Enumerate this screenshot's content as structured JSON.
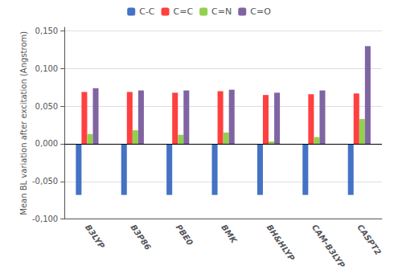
{
  "chart_data": {
    "type": "bar",
    "categories": [
      "B3LYP",
      "B3P86",
      "PBE0",
      "BMK",
      "BH&HLYP",
      "CAM-B3LYP",
      "CASPT2"
    ],
    "series": [
      {
        "name": "C-C",
        "color": "#4472C4",
        "values": [
          -0.068,
          -0.068,
          -0.068,
          -0.068,
          -0.068,
          -0.068,
          -0.068
        ]
      },
      {
        "name": "C=C",
        "color": "#FF4040",
        "values": [
          0.069,
          0.069,
          0.068,
          0.07,
          0.065,
          0.066,
          0.067
        ]
      },
      {
        "name": "C=N",
        "color": "#92D050",
        "values": [
          0.013,
          0.018,
          0.012,
          0.015,
          0.003,
          0.009,
          0.033
        ]
      },
      {
        "name": "C=O",
        "color": "#8064A2",
        "values": [
          0.074,
          0.071,
          0.071,
          0.072,
          0.068,
          0.071,
          0.13
        ]
      }
    ],
    "ylabel": "Mean BL variation after excitation (Angstrom)",
    "ylim": [
      -0.1,
      0.155
    ],
    "yticks": [
      {
        "value": -0.1,
        "label": "-0,100"
      },
      {
        "value": -0.05,
        "label": "-0,050"
      },
      {
        "value": 0.0,
        "label": "0,000"
      },
      {
        "value": 0.05,
        "label": "0,050"
      },
      {
        "value": 0.1,
        "label": "0,100"
      },
      {
        "value": 0.15,
        "label": "0,150"
      }
    ],
    "grid": true,
    "legend": "top"
  }
}
